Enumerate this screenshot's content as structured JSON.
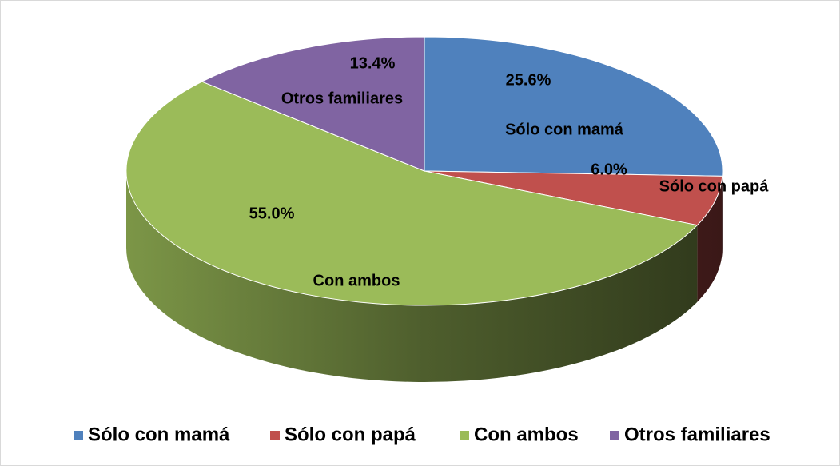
{
  "chart_data": {
    "type": "pie",
    "categories": [
      "Sólo con mamá",
      "Sólo con papá",
      "Con ambos",
      "Otros familiares"
    ],
    "values": [
      25.6,
      6.0,
      55.0,
      13.4
    ],
    "value_labels": [
      "25.6%",
      "6.0%",
      "55.0%",
      "13.4%"
    ],
    "colors": [
      "#4f81bd",
      "#c0504d",
      "#9bbb59",
      "#8064a2"
    ],
    "legend": "bottom"
  }
}
